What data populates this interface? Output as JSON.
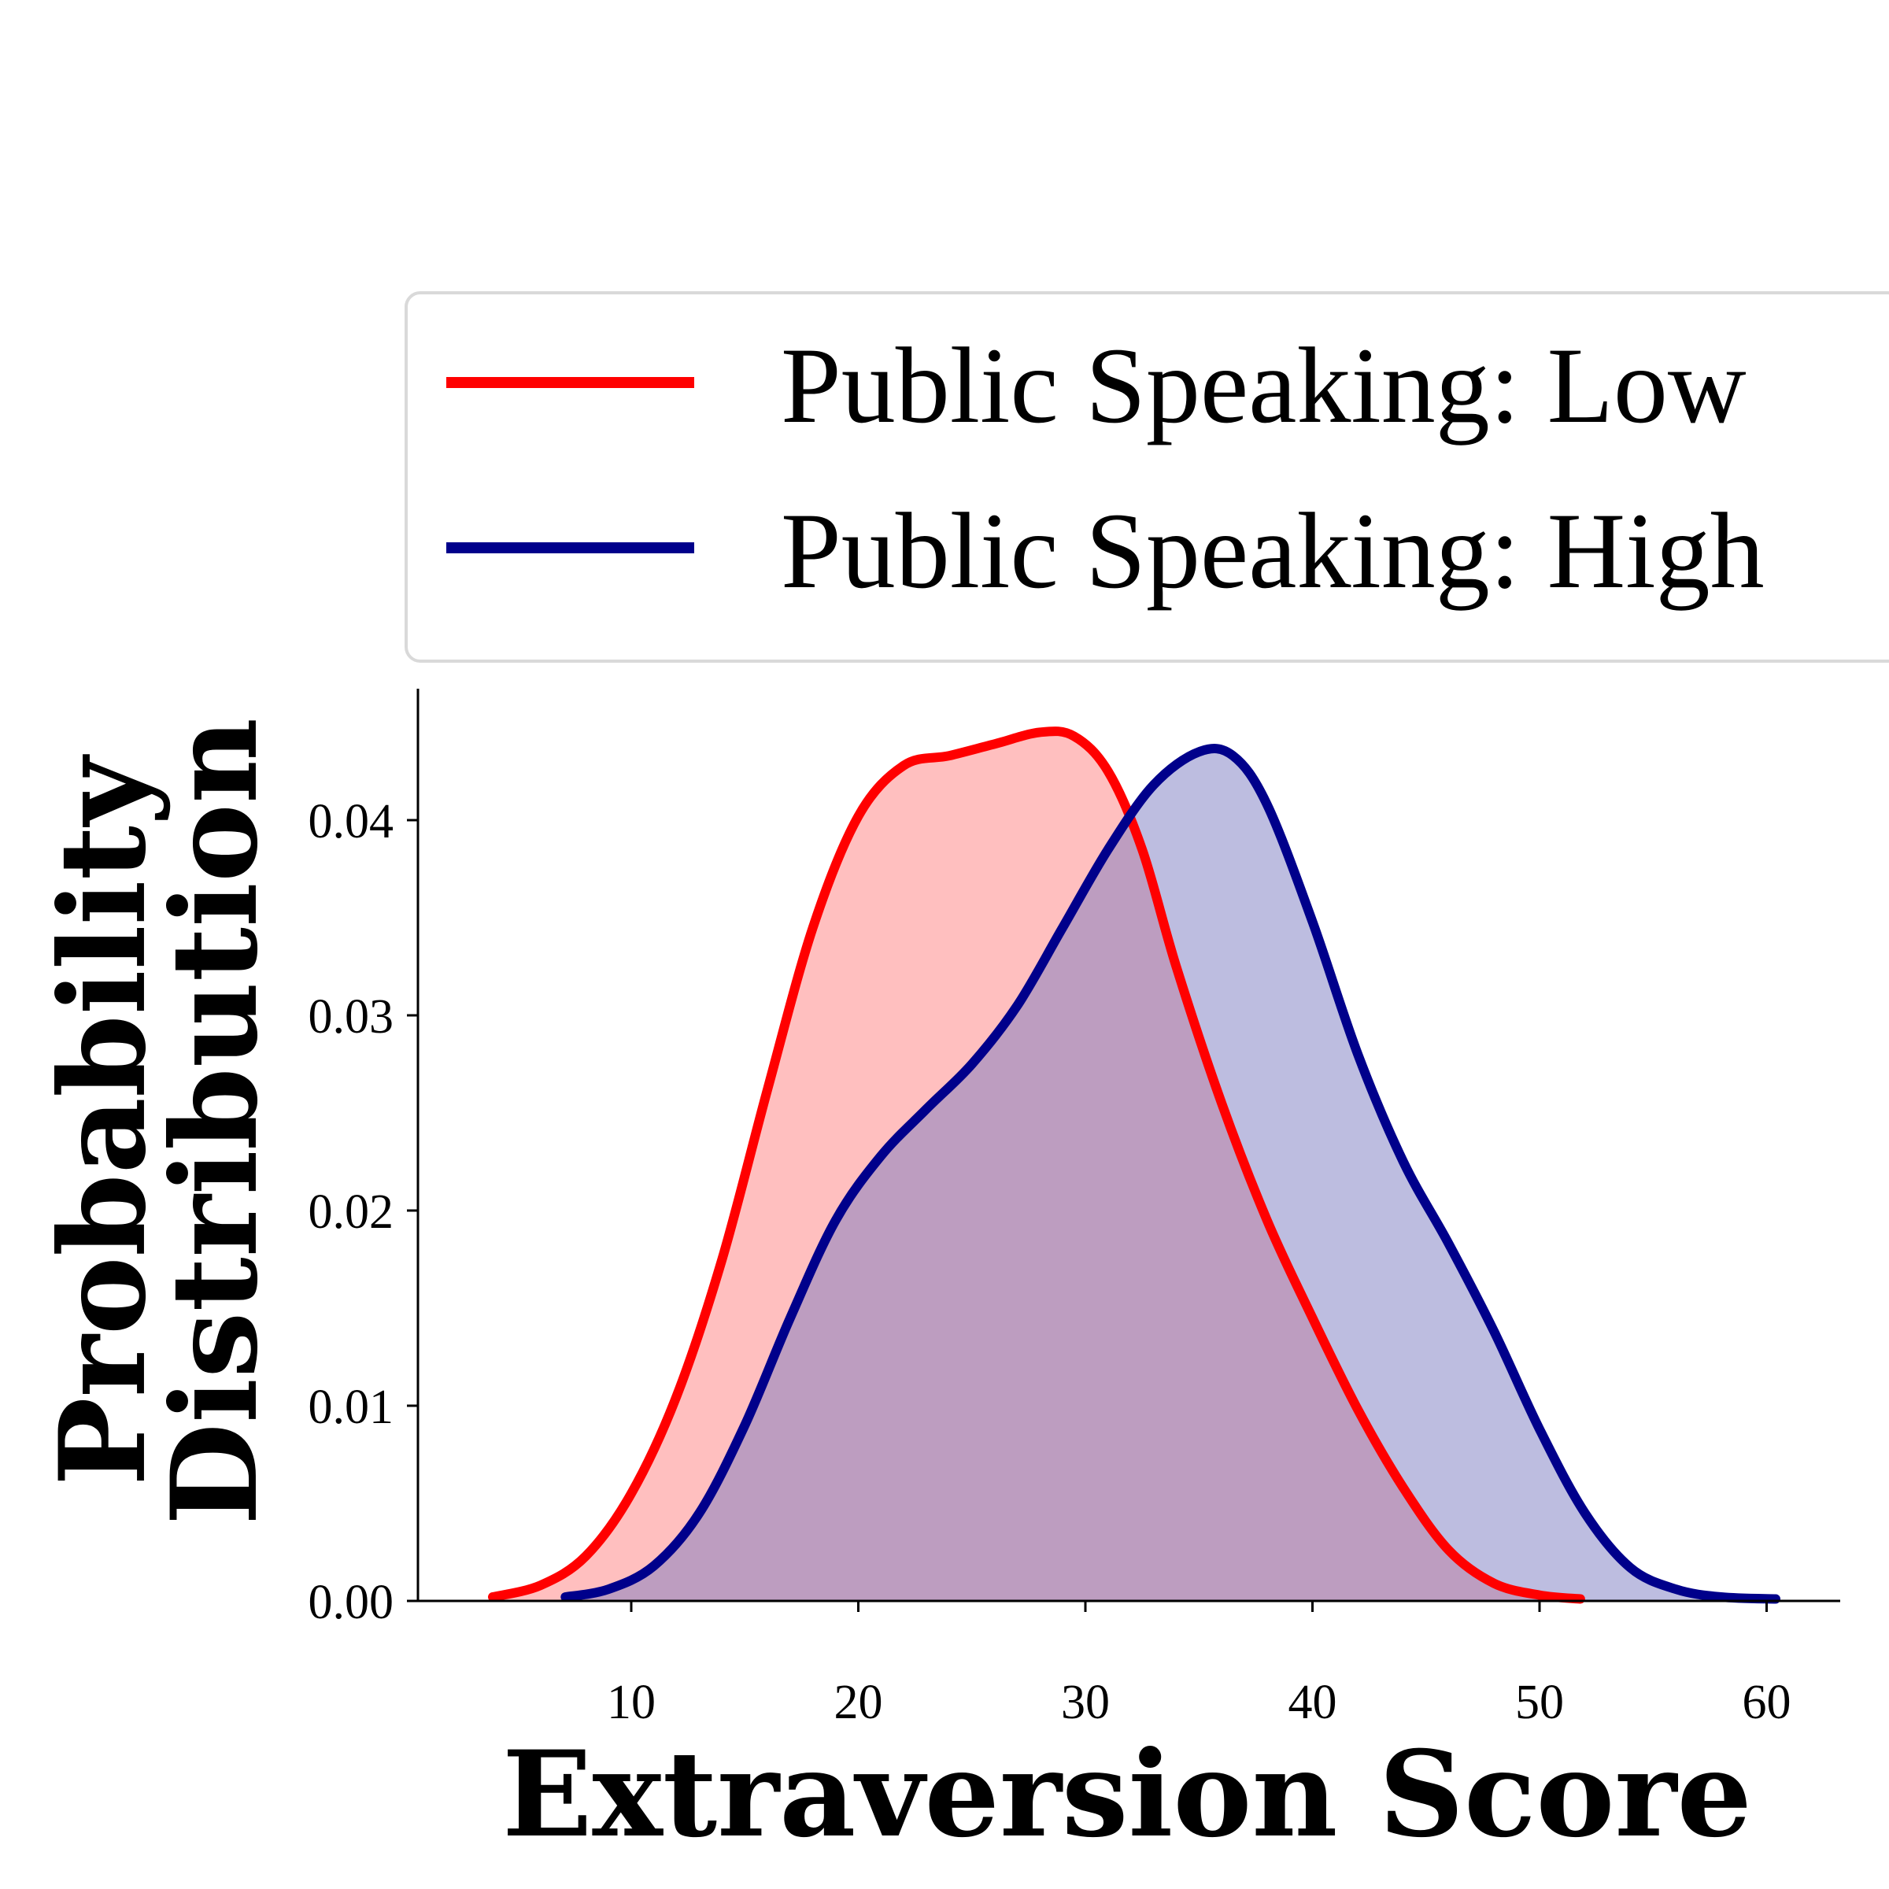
{
  "chart_data": {
    "type": "area",
    "title": "",
    "xlabel": "Extraversion Score",
    "ylabel_lines": [
      "Probability",
      "Distribution"
    ],
    "xlim": [
      0,
      63
    ],
    "ylim": [
      0,
      0.046
    ],
    "xticks": [
      10,
      20,
      30,
      40,
      50,
      60
    ],
    "xtick_labels": [
      "10",
      "20",
      "30",
      "40",
      "50",
      "60"
    ],
    "yticks": [
      0,
      0.01,
      0.02,
      0.03,
      0.04
    ],
    "ytick_labels": [
      "0.00",
      "0.01",
      "0.02",
      "0.03",
      "0.04"
    ],
    "grid": false,
    "legend_position": "top",
    "series": [
      {
        "name": "Public Speaking: Low",
        "color": "#ff0000",
        "fill_color": "#ff8080",
        "points": [
          [
            3.9,
            0.0002
          ],
          [
            6,
            0.0008
          ],
          [
            8,
            0.0023
          ],
          [
            10,
            0.0055
          ],
          [
            12,
            0.0105
          ],
          [
            14,
            0.0175
          ],
          [
            16,
            0.0262
          ],
          [
            18,
            0.0345
          ],
          [
            20,
            0.0402
          ],
          [
            22,
            0.0428
          ],
          [
            24,
            0.0433
          ],
          [
            26,
            0.0439
          ],
          [
            28,
            0.0445
          ],
          [
            29.5,
            0.0443
          ],
          [
            31,
            0.0425
          ],
          [
            32.5,
            0.0385
          ],
          [
            34,
            0.0325
          ],
          [
            36,
            0.0255
          ],
          [
            38,
            0.0195
          ],
          [
            40,
            0.0145
          ],
          [
            42,
            0.0098
          ],
          [
            44,
            0.0058
          ],
          [
            46,
            0.0026
          ],
          [
            48,
            0.0009
          ],
          [
            50,
            0.0003
          ],
          [
            51.8,
            0.0001
          ]
        ]
      },
      {
        "name": "Public Speaking: High",
        "color": "#00008b",
        "fill_color": "#7b7bc2",
        "points": [
          [
            7.1,
            0.0002
          ],
          [
            9,
            0.0006
          ],
          [
            11,
            0.0018
          ],
          [
            13,
            0.0045
          ],
          [
            15,
            0.009
          ],
          [
            17,
            0.0145
          ],
          [
            19,
            0.0195
          ],
          [
            21,
            0.0228
          ],
          [
            23,
            0.0252
          ],
          [
            25,
            0.0275
          ],
          [
            27,
            0.0305
          ],
          [
            29,
            0.0345
          ],
          [
            31,
            0.0385
          ],
          [
            33,
            0.0418
          ],
          [
            35,
            0.0435
          ],
          [
            36.5,
            0.0433
          ],
          [
            38,
            0.0408
          ],
          [
            40,
            0.0348
          ],
          [
            42,
            0.028
          ],
          [
            44,
            0.0225
          ],
          [
            46,
            0.0183
          ],
          [
            48,
            0.0138
          ],
          [
            50,
            0.0088
          ],
          [
            52,
            0.0045
          ],
          [
            54,
            0.0017
          ],
          [
            56,
            0.0006
          ],
          [
            58,
            0.0002
          ],
          [
            60.4,
            0.0001
          ]
        ]
      }
    ]
  }
}
